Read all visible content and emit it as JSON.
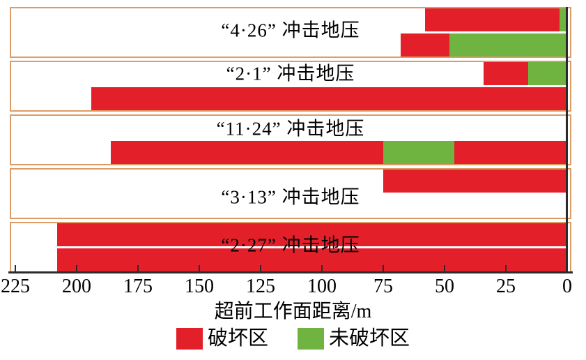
{
  "chart_data": {
    "type": "bar",
    "orientation": "horizontal-stacked",
    "xlabel": "超前工作面距离/m",
    "axis": {
      "min": 0,
      "max": 225,
      "step": 25,
      "reversed": true,
      "ticks": [
        225,
        200,
        175,
        150,
        125,
        100,
        75,
        50,
        25,
        0
      ],
      "grid": false
    },
    "legend_position": "bottom-center",
    "legend": [
      {
        "name": "破坏区",
        "color": "#e3202a"
      },
      {
        "name": "未破坏区",
        "color": "#6fb440"
      }
    ],
    "groups": [
      {
        "label": "“4·26” 冲击地压",
        "label_y_pct": 47,
        "bars": [
          {
            "row": "top",
            "segments": [
              {
                "zone": "破坏区",
                "from": 58,
                "to": 3
              },
              {
                "zone": "未破坏区",
                "from": 3,
                "to": 0
              }
            ]
          },
          {
            "row": "bottom",
            "segments": [
              {
                "zone": "破坏区",
                "from": 68,
                "to": 48
              },
              {
                "zone": "未破坏区",
                "from": 48,
                "to": 0
              }
            ]
          }
        ]
      },
      {
        "label": "“2·1” 冲击地压",
        "label_y_pct": 25,
        "bars": [
          {
            "row": "top",
            "segments": [
              {
                "zone": "破坏区",
                "from": 34,
                "to": 16
              },
              {
                "zone": "未破坏区",
                "from": 16,
                "to": 0
              }
            ]
          },
          {
            "row": "bottom",
            "segments": [
              {
                "zone": "破坏区",
                "from": 194,
                "to": 0
              }
            ]
          }
        ]
      },
      {
        "label": "“11·24” 冲击地压",
        "label_y_pct": 28,
        "bars": [
          {
            "row": "bottom",
            "segments": [
              {
                "zone": "破坏区",
                "from": 186,
                "to": 75
              },
              {
                "zone": "未破坏区",
                "from": 75,
                "to": 46
              },
              {
                "zone": "破坏区",
                "from": 46,
                "to": 0
              }
            ]
          }
        ]
      },
      {
        "label": "“3·13” 冲击地压",
        "label_y_pct": 58,
        "bars": [
          {
            "row": "top",
            "segments": [
              {
                "zone": "破坏区",
                "from": 75,
                "to": 0
              }
            ]
          }
        ]
      },
      {
        "label": "“2·27” 冲击地压",
        "label_y_pct": 46,
        "bars": [
          {
            "row": "top",
            "segments": [
              {
                "zone": "破坏区",
                "from": 208,
                "to": 0
              }
            ]
          },
          {
            "row": "bottom",
            "segments": [
              {
                "zone": "破坏区",
                "from": 208,
                "to": 0
              }
            ]
          }
        ]
      }
    ],
    "colors": {
      "damaged": "#e3202a",
      "undamaged": "#6fb440",
      "panel_border": "#dd9b66",
      "axis": "#2b2b2b",
      "background": "#ffffff"
    }
  }
}
